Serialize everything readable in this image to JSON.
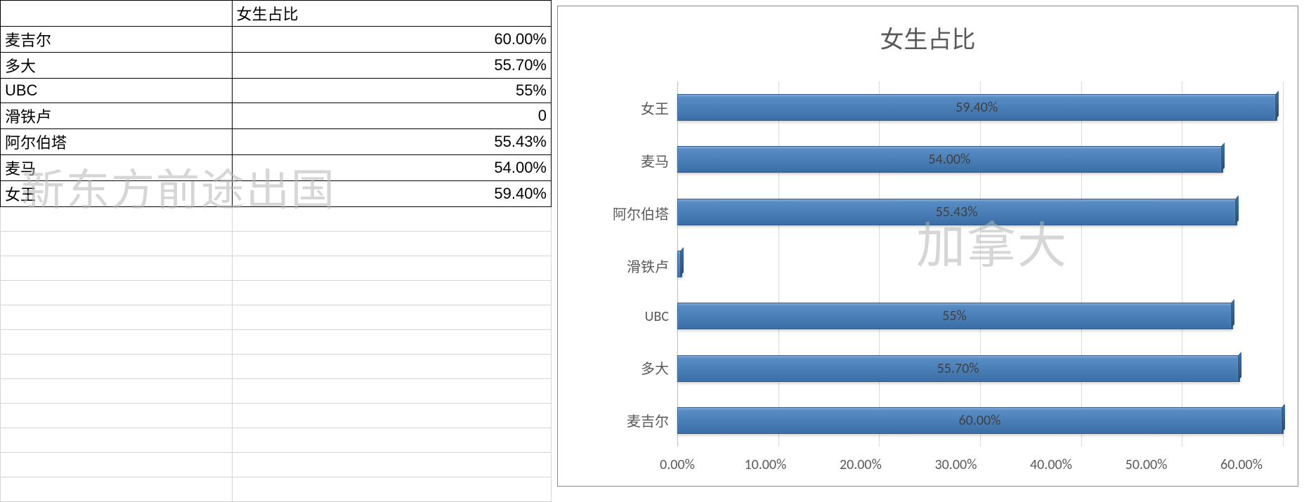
{
  "table": {
    "header": "女生占比",
    "rows": [
      {
        "name": "麦吉尔",
        "value": "60.00%"
      },
      {
        "name": "多大",
        "value": "55.70%"
      },
      {
        "name": "UBC",
        "value": "55%"
      },
      {
        "name": "滑铁卢",
        "value": "0"
      },
      {
        "name": "阿尔伯塔",
        "value": "55.43%"
      },
      {
        "name": "麦马",
        "value": "54.00%"
      },
      {
        "name": "女王",
        "value": "59.40%"
      }
    ]
  },
  "watermarks": {
    "left": "新东方前途出国",
    "right": "加拿大"
  },
  "chart": {
    "type": "bar-horizontal",
    "title": "女生占比",
    "title_fontsize": 34,
    "axis_fontsize": 20,
    "bar_color": "#4a7fb8",
    "bar_border_color": "#2f5a8a",
    "grid_color": "#d9d9d9",
    "background_color": "#ffffff",
    "xlim": [
      0,
      60
    ],
    "xtick_step": 10,
    "xticks": [
      "0.00%",
      "10.00%",
      "20.00%",
      "30.00%",
      "40.00%",
      "50.00%",
      "60.00%"
    ],
    "categories": [
      "女王",
      "麦马",
      "阿尔伯塔",
      "滑铁卢",
      "UBC",
      "多大",
      "麦吉尔"
    ],
    "values": [
      59.4,
      54.0,
      55.43,
      0.5,
      55.0,
      55.7,
      60.0
    ],
    "value_labels": [
      "59.40%",
      "54.00%",
      "55.43%",
      "",
      "55%",
      "55.70%",
      "60.00%"
    ]
  }
}
